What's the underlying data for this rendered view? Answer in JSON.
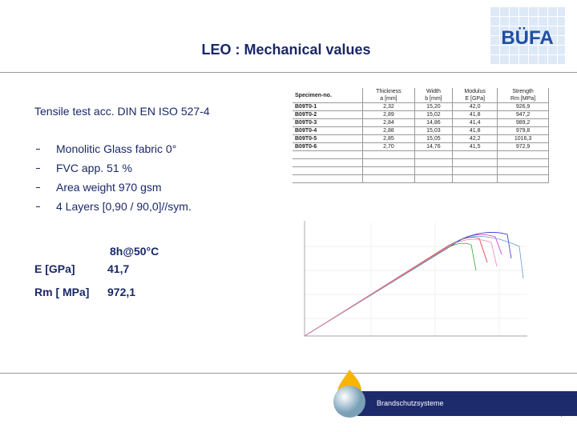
{
  "header": {
    "title": "LEO : Mechanical values",
    "logo": "BÜFA"
  },
  "body": {
    "intro": "Tensile test acc. DIN EN ISO 527-4",
    "bullets": [
      "Monolitic Glass fabric 0°",
      "FVC app. 51 %",
      "Area weight  970 gsm",
      "4 Layers   [0,90 / 90,0]//sym."
    ]
  },
  "results": {
    "condition": "8h@50°C",
    "rows": [
      [
        "E [GPa]",
        "41,7"
      ],
      [
        "Rm [ MPa]",
        "972,1"
      ]
    ]
  },
  "table": {
    "columns": [
      [
        "Specimen-no."
      ],
      [
        "Thickness",
        "a [mm]"
      ],
      [
        "Width",
        "b [mm]"
      ],
      [
        "Modulus",
        "E [GPa]"
      ],
      [
        "Strength",
        "Rm [MPa]"
      ]
    ],
    "rows": [
      [
        "B09T0-1",
        "2,32",
        "15,20",
        "42,0",
        "926,9"
      ],
      [
        "B09T0-2",
        "2,89",
        "15,02",
        "41,8",
        "947,2"
      ],
      [
        "B09T0-3",
        "2,84",
        "14,86",
        "41,4",
        "989,2"
      ],
      [
        "B09T0-4",
        "2,88",
        "15,03",
        "41,8",
        "979,8"
      ],
      [
        "B09T0-5",
        "2,85",
        "15,05",
        "42,2",
        "1016,3"
      ],
      [
        "B09T0-6",
        "2,70",
        "14,76",
        "41,5",
        "972,9"
      ]
    ]
  },
  "footer": {
    "brand": "Brandschutzsysteme",
    "page": "4"
  }
}
